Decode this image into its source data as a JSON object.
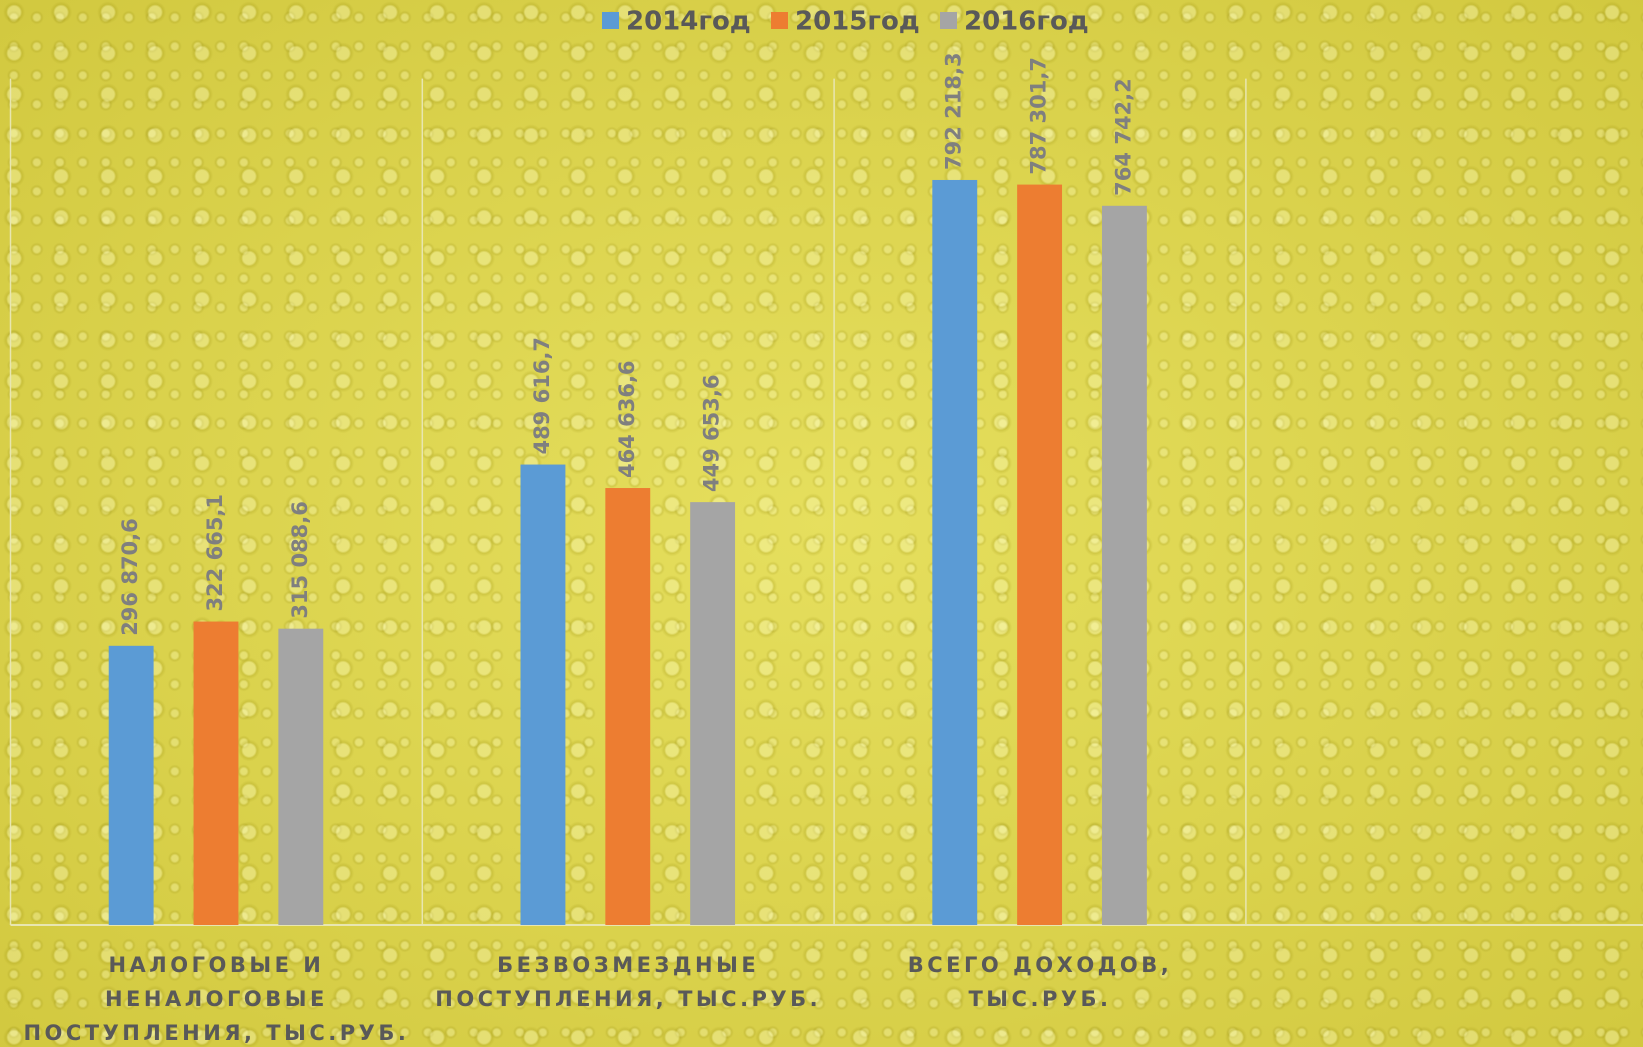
{
  "chart_data": {
    "type": "bar",
    "categories": [
      "НАЛОГОВЫЕ И НЕНАЛОГОВЫЕ ПОСТУПЛЕНИЯ, ТЫС.РУБ.",
      "БЕЗВОЗМЕЗДНЫЕ ПОСТУПЛЕНИЯ, ТЫС.РУБ.",
      "ВСЕГО ДОХОДОВ, ТЫС.РУБ.",
      null
    ],
    "series": [
      {
        "name": "2014год",
        "color": "#5b9bd5",
        "values": [
          296870.6,
          489616.7,
          792218.3,
          null
        ],
        "value_labels": [
          "296 870,6",
          "489 616,7",
          "792 218,3",
          null
        ]
      },
      {
        "name": "2015год",
        "color": "#ed7d31",
        "values": [
          322665.1,
          464636.6,
          787301.7,
          null
        ],
        "value_labels": [
          "322 665,1",
          "464 636,6",
          "787 301,7",
          null
        ]
      },
      {
        "name": "2016год",
        "color": "#a5a5a5",
        "values": [
          315088.6,
          449653.6,
          764742.2,
          null
        ],
        "value_labels": [
          "315 088,6",
          "449 653,6",
          "764 742,2",
          null
        ]
      }
    ],
    "ylim": [
      0,
      900000
    ],
    "legend": "top"
  }
}
